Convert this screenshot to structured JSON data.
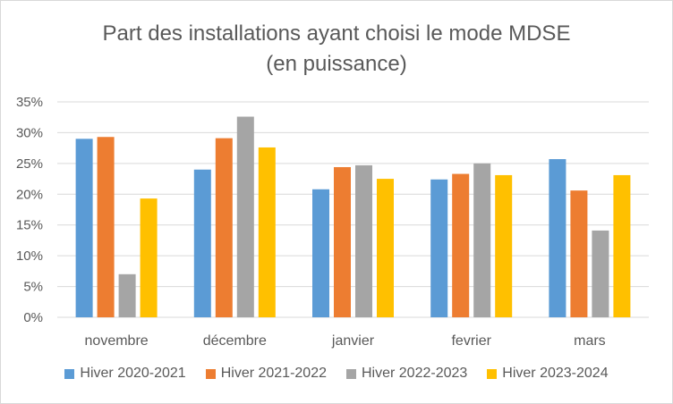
{
  "chart_data": {
    "type": "bar",
    "title": [
      "Part des installations ayant choisi le mode MDSE",
      "(en puissance)"
    ],
    "categories": [
      "novembre",
      "décembre",
      "janvier",
      "fevrier",
      "mars"
    ],
    "series": [
      {
        "name": "Hiver 2020-2021",
        "color": "#5b9bd5",
        "values": [
          0.29,
          0.24,
          0.208,
          0.224,
          0.257
        ]
      },
      {
        "name": "Hiver 2021-2022",
        "color": "#ed7d31",
        "values": [
          0.293,
          0.291,
          0.244,
          0.233,
          0.206
        ]
      },
      {
        "name": "Hiver 2022-2023",
        "color": "#a5a5a5",
        "values": [
          0.07,
          0.326,
          0.247,
          0.25,
          0.141
        ]
      },
      {
        "name": "Hiver 2023-2024",
        "color": "#ffc000",
        "values": [
          0.193,
          0.276,
          0.225,
          0.231,
          0.231
        ]
      }
    ],
    "ylim": [
      0,
      0.35
    ],
    "yticks": [
      "0%",
      "5%",
      "10%",
      "15%",
      "20%",
      "25%",
      "30%",
      "35%"
    ],
    "grid": true,
    "legend_position": "bottom"
  }
}
